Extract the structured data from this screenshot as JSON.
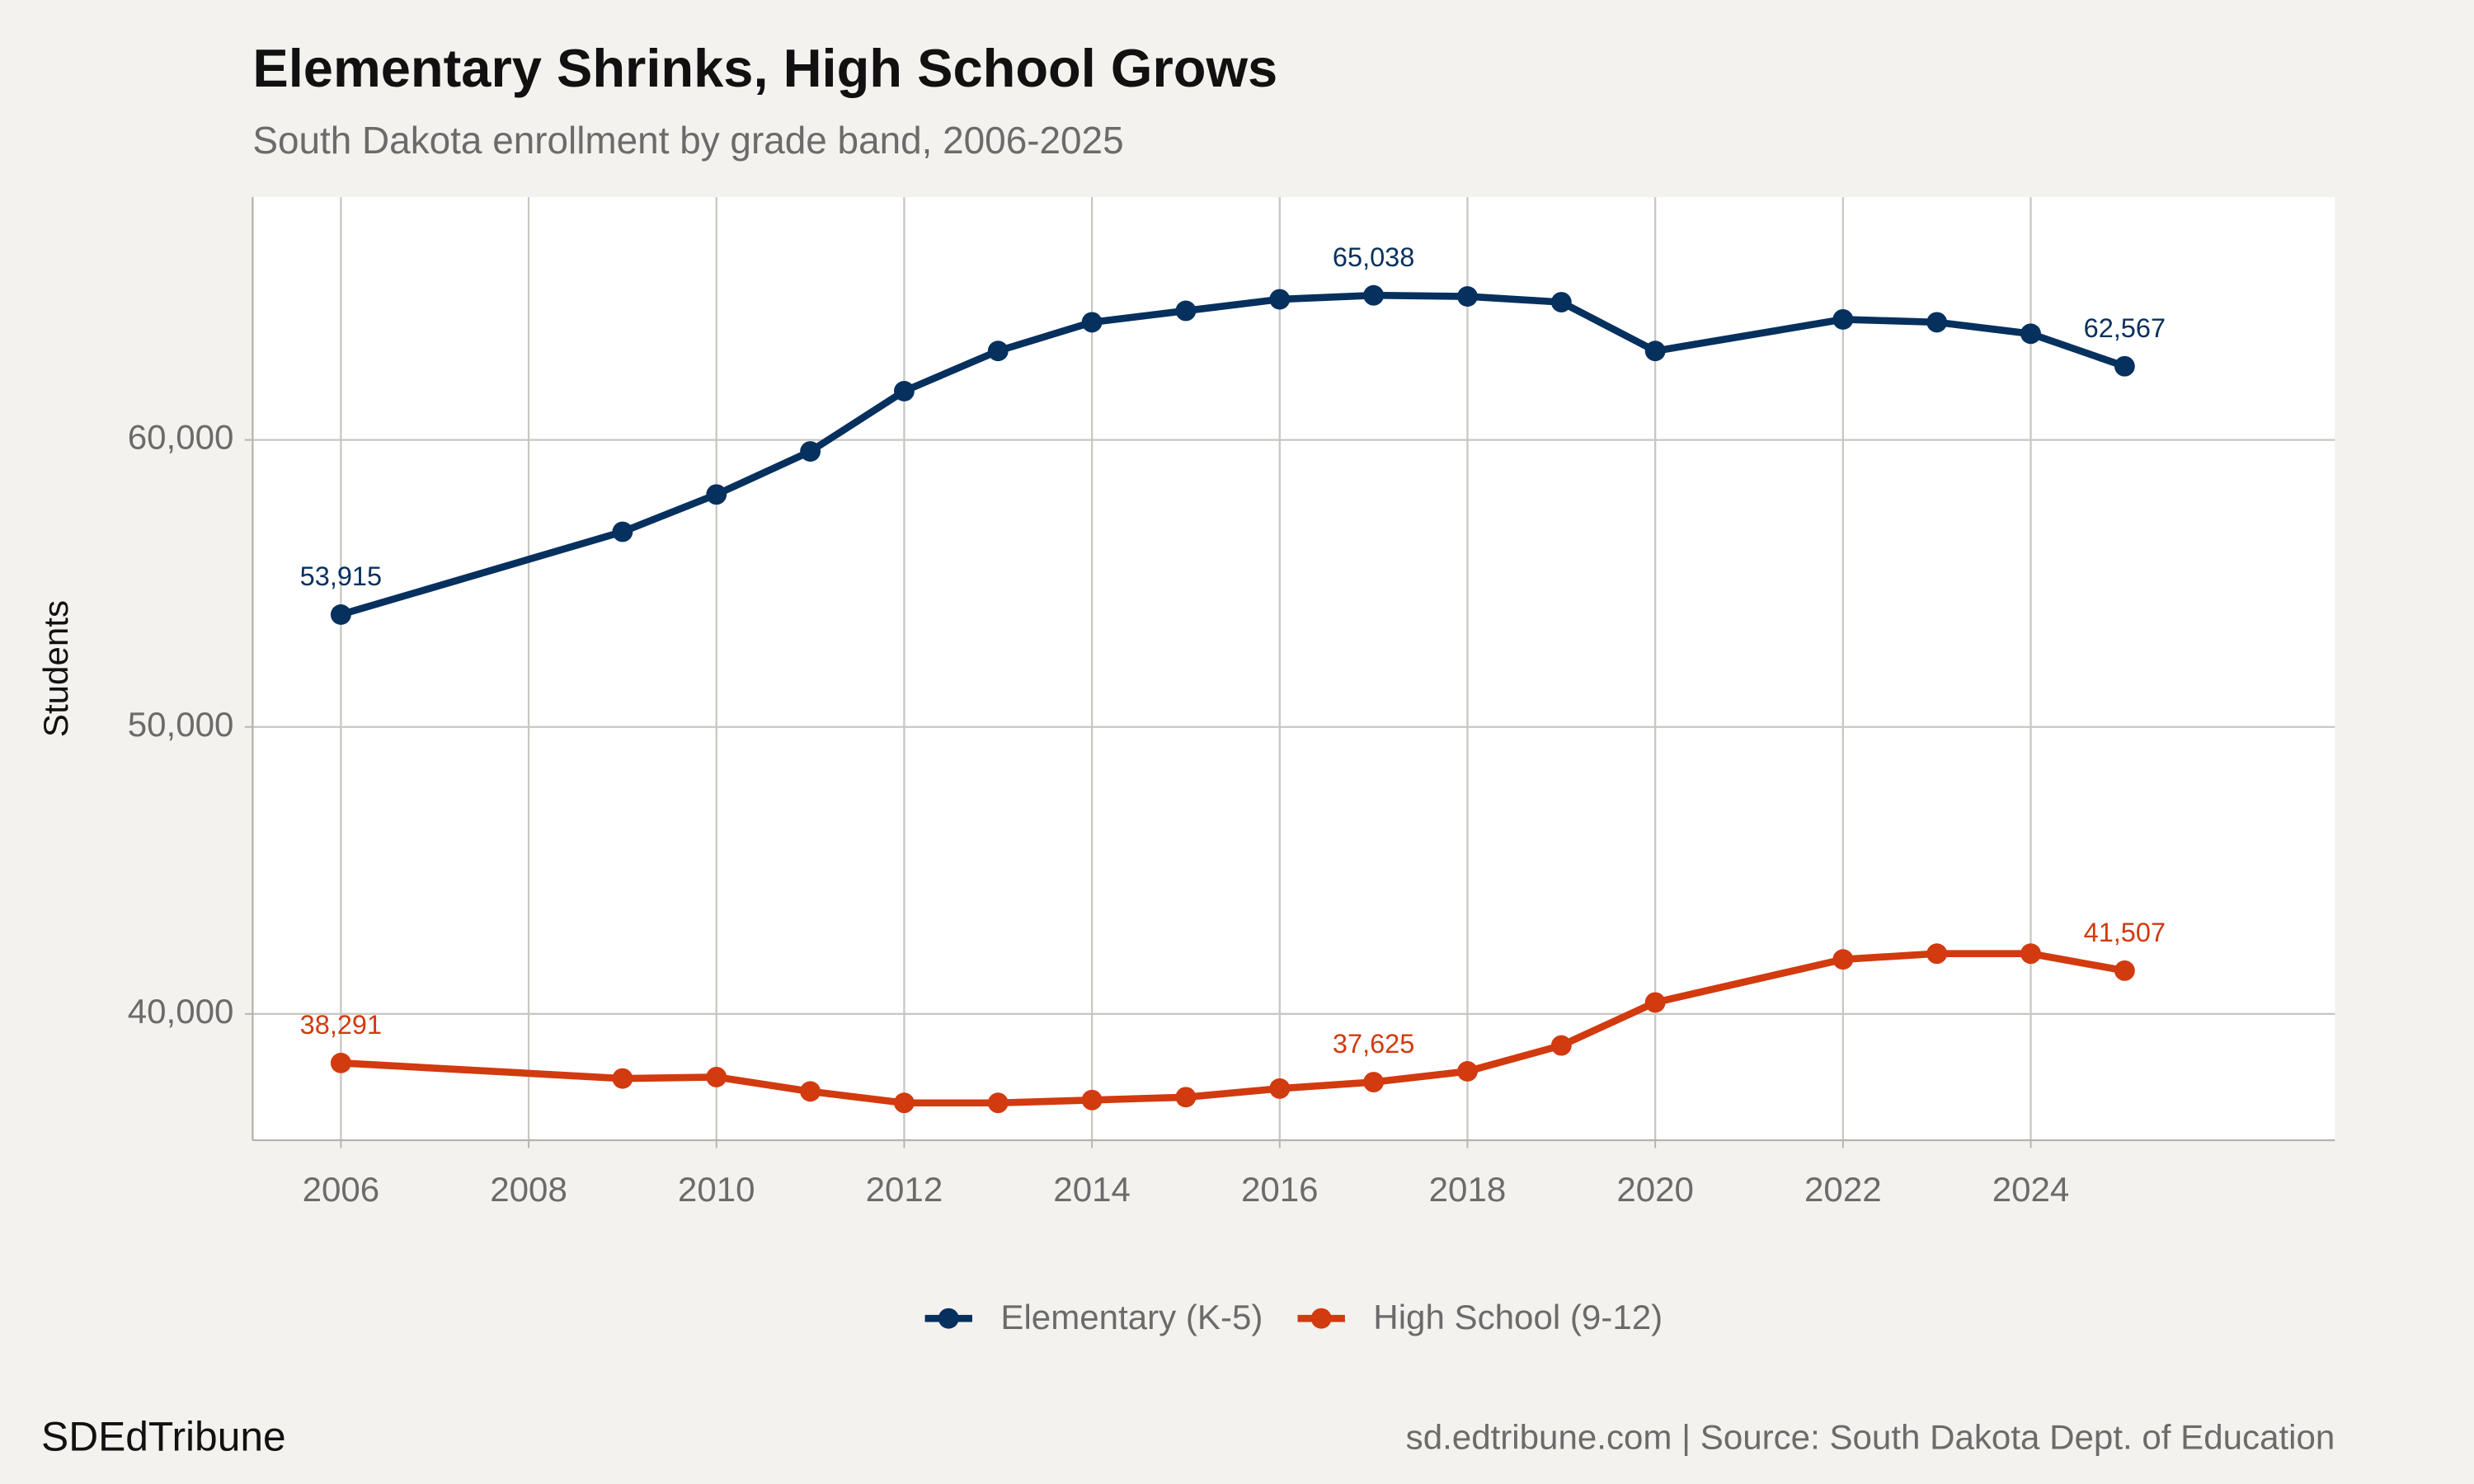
{
  "chart_data": {
    "type": "line",
    "title": "Elementary Shrinks, High School Grows",
    "subtitle": "South Dakota enrollment by grade band, 2006-2025",
    "y_label": "Students",
    "x": [
      2006,
      2009,
      2010,
      2011,
      2012,
      2013,
      2014,
      2015,
      2016,
      2017,
      2018,
      2019,
      2020,
      2022,
      2023,
      2024,
      2025
    ],
    "series": [
      {
        "name": "Elementary (K-5)",
        "color": "#06305e",
        "values": [
          53915,
          56800,
          58100,
          59600,
          61700,
          63100,
          64100,
          64500,
          64900,
          65038,
          65000,
          64800,
          63100,
          64200,
          64100,
          63700,
          62567
        ],
        "value_labels": [
          "53,915",
          null,
          null,
          null,
          null,
          null,
          null,
          null,
          null,
          "65,038",
          null,
          null,
          null,
          null,
          null,
          null,
          "62,567"
        ]
      },
      {
        "name": "High School (9-12)",
        "color": "#d23a0f",
        "values": [
          38291,
          37750,
          37800,
          37300,
          36900,
          36900,
          37000,
          37100,
          37400,
          37625,
          38000,
          38900,
          40400,
          41900,
          42100,
          42100,
          41507
        ],
        "value_labels": [
          "38,291",
          null,
          null,
          null,
          null,
          null,
          null,
          null,
          null,
          "37,625",
          null,
          null,
          null,
          null,
          null,
          null,
          "41,507"
        ]
      }
    ],
    "xlim": [
      2005.06,
      2027.24
    ],
    "ylim": [
      35600,
      68460
    ],
    "xticks": [
      2006,
      2008,
      2010,
      2012,
      2014,
      2016,
      2018,
      2020,
      2022,
      2024
    ],
    "yticks": [
      {
        "value": 40000,
        "label": "40,000"
      },
      {
        "value": 50000,
        "label": "50,000"
      },
      {
        "value": 60000,
        "label": "60,000"
      }
    ],
    "grid": true,
    "legend_position": "bottom",
    "brand": "SDEdTribune",
    "caption": "sd.edtribune.com | Source: South Dakota Dept. of Education"
  }
}
